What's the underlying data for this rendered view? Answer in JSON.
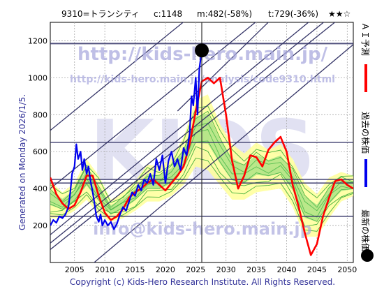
{
  "header": {
    "code_name": "9310=トランシティ",
    "current": "c:1148",
    "mid": "m:482(-58%)",
    "target": "t:729(-36%)",
    "stars": "★★☆"
  },
  "side_left": "Generated on Monday 2026/1/5.",
  "side_right": {
    "ai_label": "ＡＩ予測",
    "past_label": "過去の株価",
    "latest_label": "最新の株価"
  },
  "watermarks": {
    "url_top": "http://kids-hero.main.jp/",
    "url_mid": "http://kids-hero.main.jp/analysis/code9310.html",
    "big_logo": "KIDS",
    "email": "info@kids-hero.main.jp"
  },
  "footer": "Copyright (c) Kids-Hero Research Institute. All Rights Reserved.",
  "colors": {
    "ai_line": "#ff0000",
    "past_line": "#0000ee",
    "band_fill": "#ffff99",
    "band_lines": "#33aa33",
    "channel": "#333366",
    "hline": "#333366"
  },
  "chart_data": {
    "type": "line",
    "xlim": [
      2001,
      2051
    ],
    "ylim": [
      0,
      1300
    ],
    "xticks": [
      2005,
      2010,
      2015,
      2020,
      2025,
      2030,
      2035,
      2040,
      2045,
      2050
    ],
    "yticks": [
      200,
      400,
      600,
      800,
      1000,
      1200
    ],
    "latest_point": {
      "x": 2026.0,
      "y": 1148
    },
    "vertical_marker_x": 2026.0,
    "horizontal_levels": [
      1185,
      650,
      450,
      430,
      250
    ],
    "channel_lines": [
      {
        "x": [
          2001,
          2051
        ],
        "y": [
          70,
          1380
        ]
      },
      {
        "x": [
          2001,
          2051
        ],
        "y": [
          105,
          1430
        ]
      },
      {
        "x": [
          2001,
          2051
        ],
        "y": [
          150,
          1500
        ]
      },
      {
        "x": [
          2001,
          2051
        ],
        "y": [
          715,
          2050
        ]
      },
      {
        "x": [
          2001,
          2051
        ],
        "y": [
          400,
          1730
        ]
      },
      {
        "x": [
          2022,
          2051
        ],
        "y": [
          820,
          1750
        ]
      },
      {
        "x": [
          2001,
          2051
        ],
        "y": [
          -200,
          1180
        ]
      }
    ],
    "series": [
      {
        "name": "過去の株価",
        "x": [
          2001,
          2001.5,
          2002,
          2002.5,
          2003,
          2003.5,
          2004,
          2004.3,
          2004.6,
          2005,
          2005.3,
          2005.6,
          2006,
          2006.3,
          2006.6,
          2007,
          2007.3,
          2007.6,
          2008,
          2008.3,
          2008.6,
          2009,
          2009.3,
          2009.6,
          2010,
          2010.5,
          2011,
          2011.5,
          2012,
          2012.5,
          2013,
          2013.5,
          2014,
          2014.5,
          2015,
          2015.5,
          2016,
          2016.5,
          2017,
          2017.5,
          2018,
          2018.5,
          2019,
          2019.5,
          2020,
          2020.5,
          2021,
          2021.5,
          2022,
          2022.5,
          2023,
          2023.5,
          2024,
          2024.3,
          2024.6,
          2025,
          2025.3,
          2025.6,
          2026
        ],
        "y": [
          200,
          230,
          215,
          250,
          240,
          260,
          300,
          380,
          480,
          520,
          640,
          560,
          600,
          500,
          560,
          480,
          520,
          450,
          380,
          320,
          250,
          220,
          260,
          200,
          230,
          200,
          220,
          180,
          210,
          260,
          300,
          280,
          330,
          380,
          360,
          420,
          390,
          450,
          430,
          480,
          420,
          560,
          500,
          580,
          430,
          550,
          600,
          520,
          560,
          500,
          620,
          580,
          700,
          900,
          850,
          1000,
          800,
          1050,
          1148
        ]
      },
      {
        "name": "ＡＩ予測",
        "x": [
          2001,
          2002,
          2003,
          2004,
          2005,
          2006,
          2007,
          2008,
          2009,
          2010,
          2011,
          2012,
          2013,
          2014,
          2015,
          2016,
          2017,
          2018,
          2019,
          2020,
          2021,
          2022,
          2023,
          2024,
          2025,
          2026,
          2027,
          2028,
          2029,
          2030,
          2031,
          2032,
          2033,
          2034,
          2035,
          2036,
          2037,
          2038,
          2039,
          2040,
          2041,
          2042,
          2043,
          2044,
          2045,
          2046,
          2047,
          2048,
          2049,
          2050,
          2051
        ],
        "y": [
          460,
          370,
          320,
          290,
          310,
          380,
          470,
          470,
          360,
          270,
          230,
          250,
          290,
          350,
          380,
          400,
          430,
          450,
          420,
          390,
          430,
          470,
          520,
          640,
          820,
          980,
          1000,
          970,
          1000,
          800,
          550,
          400,
          470,
          580,
          570,
          520,
          610,
          650,
          680,
          600,
          420,
          300,
          160,
          40,
          100,
          250,
          350,
          440,
          450,
          420,
          400
        ]
      },
      {
        "name": "予測帯上限",
        "x": [
          2001,
          2003,
          2005,
          2007,
          2009,
          2011,
          2013,
          2015,
          2017,
          2019,
          2021,
          2023,
          2025,
          2027,
          2029,
          2031,
          2033,
          2035,
          2037,
          2039,
          2041,
          2043,
          2045,
          2047,
          2049,
          2051
        ],
        "y": [
          440,
          380,
          430,
          560,
          470,
          340,
          380,
          440,
          530,
          520,
          560,
          680,
          880,
          910,
          750,
          640,
          590,
          650,
          610,
          640,
          560,
          430,
          370,
          460,
          490,
          470
        ]
      },
      {
        "name": "予測帯下限",
        "x": [
          2001,
          2003,
          2005,
          2007,
          2009,
          2011,
          2013,
          2015,
          2017,
          2019,
          2021,
          2023,
          2025,
          2027,
          2029,
          2031,
          2033,
          2035,
          2037,
          2039,
          2041,
          2043,
          2045,
          2047,
          2049,
          2051
        ],
        "y": [
          240,
          240,
          280,
          340,
          260,
          220,
          240,
          280,
          330,
          330,
          360,
          420,
          520,
          500,
          420,
          340,
          340,
          380,
          390,
          400,
          300,
          140,
          140,
          240,
          330,
          360
        ]
      }
    ]
  }
}
